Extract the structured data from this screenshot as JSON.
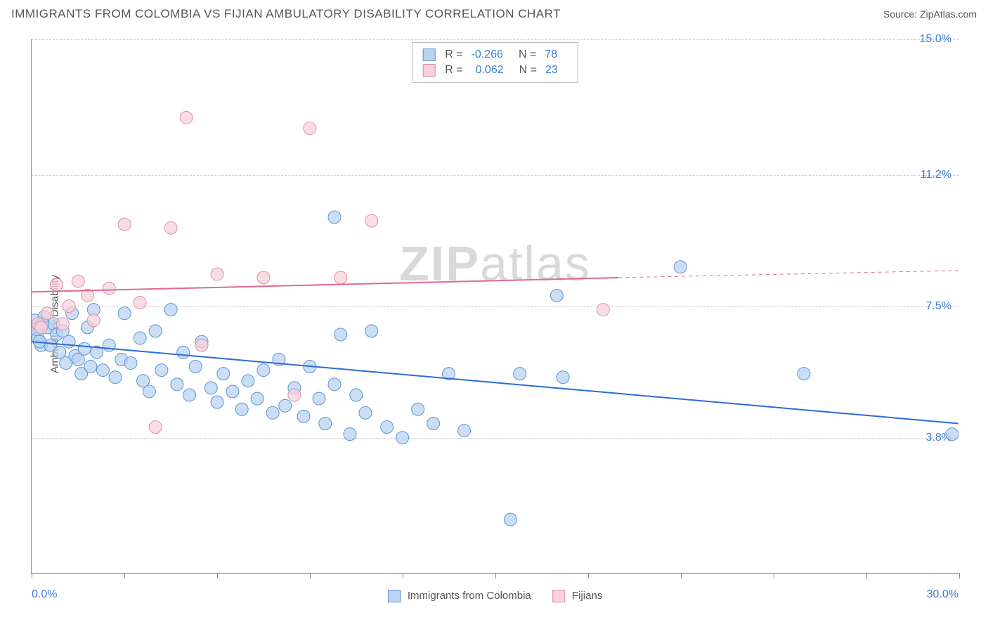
{
  "header": {
    "title": "IMMIGRANTS FROM COLOMBIA VS FIJIAN AMBULATORY DISABILITY CORRELATION CHART",
    "source": "Source: ZipAtlas.com"
  },
  "y_axis": {
    "label": "Ambulatory Disability"
  },
  "chart": {
    "type": "scatter",
    "x_min": 0.0,
    "x_max": 30.0,
    "y_min": 0.0,
    "y_max": 15.0,
    "y_gridlines": [
      3.8,
      7.5,
      11.2,
      15.0
    ],
    "y_tick_labels": [
      "3.8%",
      "7.5%",
      "11.2%",
      "15.0%"
    ],
    "x_tick_positions": [
      0,
      3,
      6,
      9,
      12,
      15,
      18,
      21,
      24,
      27,
      30
    ],
    "x_left_label": "0.0%",
    "x_right_label": "30.0%",
    "background_color": "#ffffff",
    "grid_color": "#cccccc",
    "axis_color": "#888888",
    "watermark": "ZIPatlas",
    "series": [
      {
        "name": "Immigrants from Colombia",
        "color_fill": "#b9d3f0",
        "color_stroke": "#5a94d6",
        "marker_radius": 9,
        "R": -0.266,
        "N": 78,
        "trend": {
          "x1": 0,
          "y1": 6.5,
          "x2": 30,
          "y2": 4.2,
          "color": "#2b6cd4",
          "width": 2
        },
        "points": [
          [
            0.1,
            7.1
          ],
          [
            0.2,
            6.9
          ],
          [
            0.2,
            6.6
          ],
          [
            0.3,
            6.4
          ],
          [
            0.4,
            7.2
          ],
          [
            0.5,
            6.9
          ],
          [
            0.6,
            6.4
          ],
          [
            0.7,
            7.0
          ],
          [
            0.8,
            6.7
          ],
          [
            0.9,
            6.2
          ],
          [
            1.0,
            6.8
          ],
          [
            1.1,
            5.9
          ],
          [
            1.2,
            6.5
          ],
          [
            1.3,
            7.3
          ],
          [
            1.4,
            6.1
          ],
          [
            1.5,
            6.0
          ],
          [
            1.6,
            5.6
          ],
          [
            1.7,
            6.3
          ],
          [
            1.8,
            6.9
          ],
          [
            1.9,
            5.8
          ],
          [
            2.0,
            7.4
          ],
          [
            2.1,
            6.2
          ],
          [
            2.3,
            5.7
          ],
          [
            2.5,
            6.4
          ],
          [
            2.7,
            5.5
          ],
          [
            2.9,
            6.0
          ],
          [
            3.0,
            7.3
          ],
          [
            3.2,
            5.9
          ],
          [
            3.5,
            6.6
          ],
          [
            3.6,
            5.4
          ],
          [
            3.8,
            5.1
          ],
          [
            4.0,
            6.8
          ],
          [
            4.2,
            5.7
          ],
          [
            4.5,
            7.4
          ],
          [
            4.7,
            5.3
          ],
          [
            4.9,
            6.2
          ],
          [
            5.1,
            5.0
          ],
          [
            5.3,
            5.8
          ],
          [
            5.5,
            6.5
          ],
          [
            5.8,
            5.2
          ],
          [
            6.0,
            4.8
          ],
          [
            6.2,
            5.6
          ],
          [
            6.5,
            5.1
          ],
          [
            6.8,
            4.6
          ],
          [
            7.0,
            5.4
          ],
          [
            7.3,
            4.9
          ],
          [
            7.5,
            5.7
          ],
          [
            7.8,
            4.5
          ],
          [
            8.0,
            6.0
          ],
          [
            8.2,
            4.7
          ],
          [
            8.5,
            5.2
          ],
          [
            8.8,
            4.4
          ],
          [
            9.0,
            5.8
          ],
          [
            9.3,
            4.9
          ],
          [
            9.5,
            4.2
          ],
          [
            9.8,
            5.3
          ],
          [
            10.0,
            6.7
          ],
          [
            10.3,
            3.9
          ],
          [
            10.5,
            5.0
          ],
          [
            10.8,
            4.5
          ],
          [
            11.0,
            6.8
          ],
          [
            11.5,
            4.1
          ],
          [
            12.0,
            3.8
          ],
          [
            12.5,
            4.6
          ],
          [
            13.0,
            4.2
          ],
          [
            13.5,
            5.6
          ],
          [
            14.0,
            4.0
          ],
          [
            9.8,
            10.0
          ],
          [
            15.5,
            1.5
          ],
          [
            15.8,
            5.6
          ],
          [
            17.0,
            7.8
          ],
          [
            17.2,
            5.5
          ],
          [
            21.0,
            8.6
          ],
          [
            25.0,
            5.6
          ],
          [
            29.8,
            3.9
          ],
          [
            0.15,
            6.85
          ],
          [
            0.25,
            6.5
          ],
          [
            0.35,
            7.0
          ]
        ]
      },
      {
        "name": "Fijians",
        "color_fill": "#f7d1db",
        "color_stroke": "#e48ca5",
        "marker_radius": 9,
        "R": 0.062,
        "N": 23,
        "trend": {
          "x1": 0,
          "y1": 7.9,
          "x2": 19,
          "y2": 8.3,
          "dash_x2": 30,
          "dash_y2": 8.5,
          "color": "#e06a8c",
          "width": 2
        },
        "points": [
          [
            0.2,
            7.0
          ],
          [
            0.3,
            6.9
          ],
          [
            0.5,
            7.3
          ],
          [
            0.8,
            8.1
          ],
          [
            1.0,
            7.0
          ],
          [
            1.2,
            7.5
          ],
          [
            1.5,
            8.2
          ],
          [
            1.8,
            7.8
          ],
          [
            2.0,
            7.1
          ],
          [
            2.5,
            8.0
          ],
          [
            3.0,
            9.8
          ],
          [
            3.5,
            7.6
          ],
          [
            4.0,
            4.1
          ],
          [
            4.5,
            9.7
          ],
          [
            5.0,
            12.8
          ],
          [
            5.5,
            6.4
          ],
          [
            6.0,
            8.4
          ],
          [
            7.5,
            8.3
          ],
          [
            8.5,
            5.0
          ],
          [
            9.0,
            12.5
          ],
          [
            10.0,
            8.3
          ],
          [
            11.0,
            9.9
          ],
          [
            18.5,
            7.4
          ]
        ]
      }
    ]
  },
  "legend": {
    "top": {
      "r_label": "R =",
      "n_label": "N ="
    },
    "bottom": {
      "series1": "Immigrants from Colombia",
      "series2": "Fijians"
    }
  }
}
